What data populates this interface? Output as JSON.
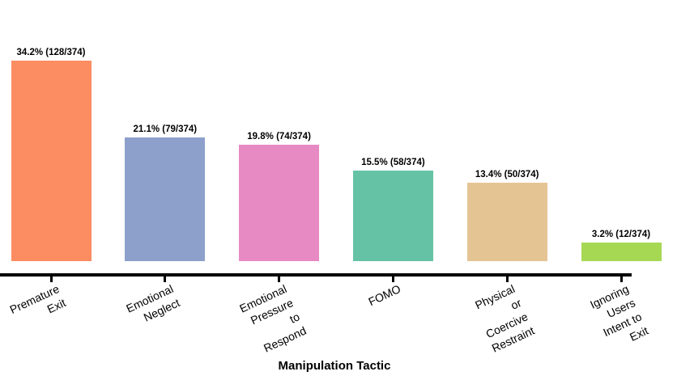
{
  "chart_data": {
    "type": "bar",
    "xlabel": "Manipulation Tactic",
    "ylabel": "",
    "title": "",
    "total_n": 374,
    "categories": [
      "Premature Exit",
      "Emotional Neglect",
      "Emotional Pressure to Respond",
      "FOMO",
      "Physical or Coercive Restraint",
      "Ignoring Users Intent to Exit"
    ],
    "tick_labels": [
      "Premature Exit",
      "Emotional Neglect",
      "Emotional Pressure\nto Respond",
      "FOMO",
      "Physical or\nCoercive Restraint",
      "Ignoring Users\nIntent to Exit"
    ],
    "values_percent": [
      34.2,
      21.1,
      19.8,
      15.5,
      13.4,
      3.2
    ],
    "counts": [
      128,
      79,
      74,
      58,
      50,
      12
    ],
    "bar_labels": [
      "34.2% (128/374)",
      "21.1% (79/374)",
      "19.8% (74/374)",
      "15.5% (58/374)",
      "13.4% (50/374)",
      "3.2% (12/374)"
    ],
    "colors": [
      "#FC8D62",
      "#8DA0CB",
      "#E78AC3",
      "#66C2A5",
      "#E5C494",
      "#A6D854"
    ],
    "axis_color": "#000000",
    "grid": false,
    "legend_position": "none"
  }
}
